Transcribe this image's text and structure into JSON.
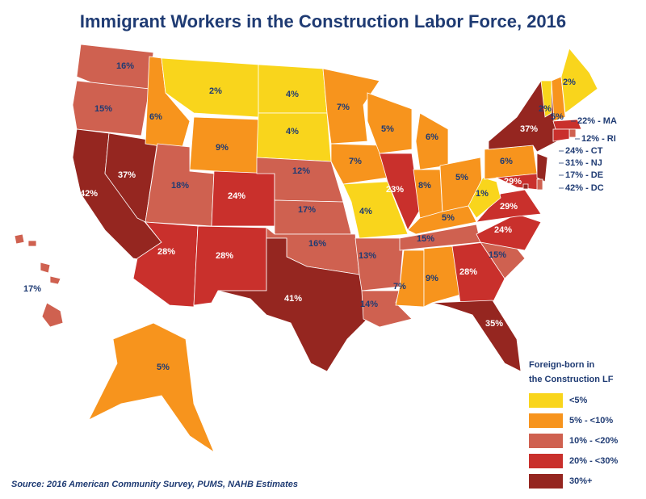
{
  "title": "Immigrant Workers in the Construction Labor Force, 2016",
  "source": "Source: 2016 American Community Survey, PUMS, NAHB Estimates",
  "legend": {
    "title": [
      "Foreign-born in",
      "the Construction LF"
    ],
    "bins": [
      {
        "label": "<5%",
        "from": null,
        "to": 5,
        "color": "#f9d51c"
      },
      {
        "label": "5% - <10%",
        "from": 5,
        "to": 10,
        "color": "#f7941d"
      },
      {
        "label": "10% - <20%",
        "from": 10,
        "to": 20,
        "color": "#cf6150"
      },
      {
        "label": "20% - <30%",
        "from": 20,
        "to": 30,
        "color": "#c9302c"
      },
      {
        "label": "30%+",
        "from": 30,
        "to": null,
        "color": "#952620"
      }
    ]
  },
  "states": [
    {
      "label": "16%",
      "value": 16
    },
    {
      "label": "15%",
      "value": 15
    },
    {
      "label": "42%",
      "value": 42
    },
    {
      "label": "37%",
      "value": 37
    },
    {
      "label": "6%",
      "value": 6
    },
    {
      "label": "2%",
      "value": 2
    },
    {
      "label": "9%",
      "value": 9
    },
    {
      "label": "18%",
      "value": 18
    },
    {
      "label": "24%",
      "value": 24
    },
    {
      "label": "28%",
      "value": 28
    },
    {
      "label": "28%",
      "value": 28
    },
    {
      "label": "4%",
      "value": 4
    },
    {
      "label": "4%",
      "value": 4
    },
    {
      "label": "12%",
      "value": 12
    },
    {
      "label": "17%",
      "value": 17
    },
    {
      "label": "16%",
      "value": 16
    },
    {
      "label": "41%",
      "value": 41
    },
    {
      "label": "7%",
      "value": 7
    },
    {
      "label": "7%",
      "value": 7
    },
    {
      "label": "4%",
      "value": 4
    },
    {
      "label": "13%",
      "value": 13
    },
    {
      "label": "14%",
      "value": 14
    },
    {
      "label": "5%",
      "value": 5
    },
    {
      "label": "23%",
      "value": 23
    },
    {
      "label": "6%",
      "value": 6
    },
    {
      "label": "8%",
      "value": 8
    },
    {
      "label": "5%",
      "value": 5
    },
    {
      "label": "5%",
      "value": 5
    },
    {
      "label": "15%",
      "value": 15
    },
    {
      "label": "7%",
      "value": 7
    },
    {
      "label": "9%",
      "value": 9
    },
    {
      "label": "28%",
      "value": 28
    },
    {
      "label": "35%",
      "value": 35
    },
    {
      "label": "15%",
      "value": 15
    },
    {
      "label": "24%",
      "value": 24
    },
    {
      "label": "29%",
      "value": 29
    },
    {
      "label": "1%",
      "value": 1
    },
    {
      "label": "6%",
      "value": 6
    },
    {
      "label": "37%",
      "value": 37
    },
    {
      "label": "29%",
      "value": 29
    },
    {
      "label": "2%",
      "value": 2
    },
    {
      "label": "5%",
      "value": 5
    },
    {
      "label": "2%",
      "value": 2
    },
    {
      "label": "22% - MA",
      "value": 22
    },
    {
      "label": "12% - RI",
      "value": 12
    },
    {
      "label": "24% - CT",
      "value": 24
    },
    {
      "label": "31% - NJ",
      "value": 31
    },
    {
      "label": "17% - DE",
      "value": 17
    },
    {
      "label": "42% - DC",
      "value": 42
    },
    {
      "label": "5%",
      "value": 5
    },
    {
      "label": "17%",
      "value": 17
    }
  ]
}
